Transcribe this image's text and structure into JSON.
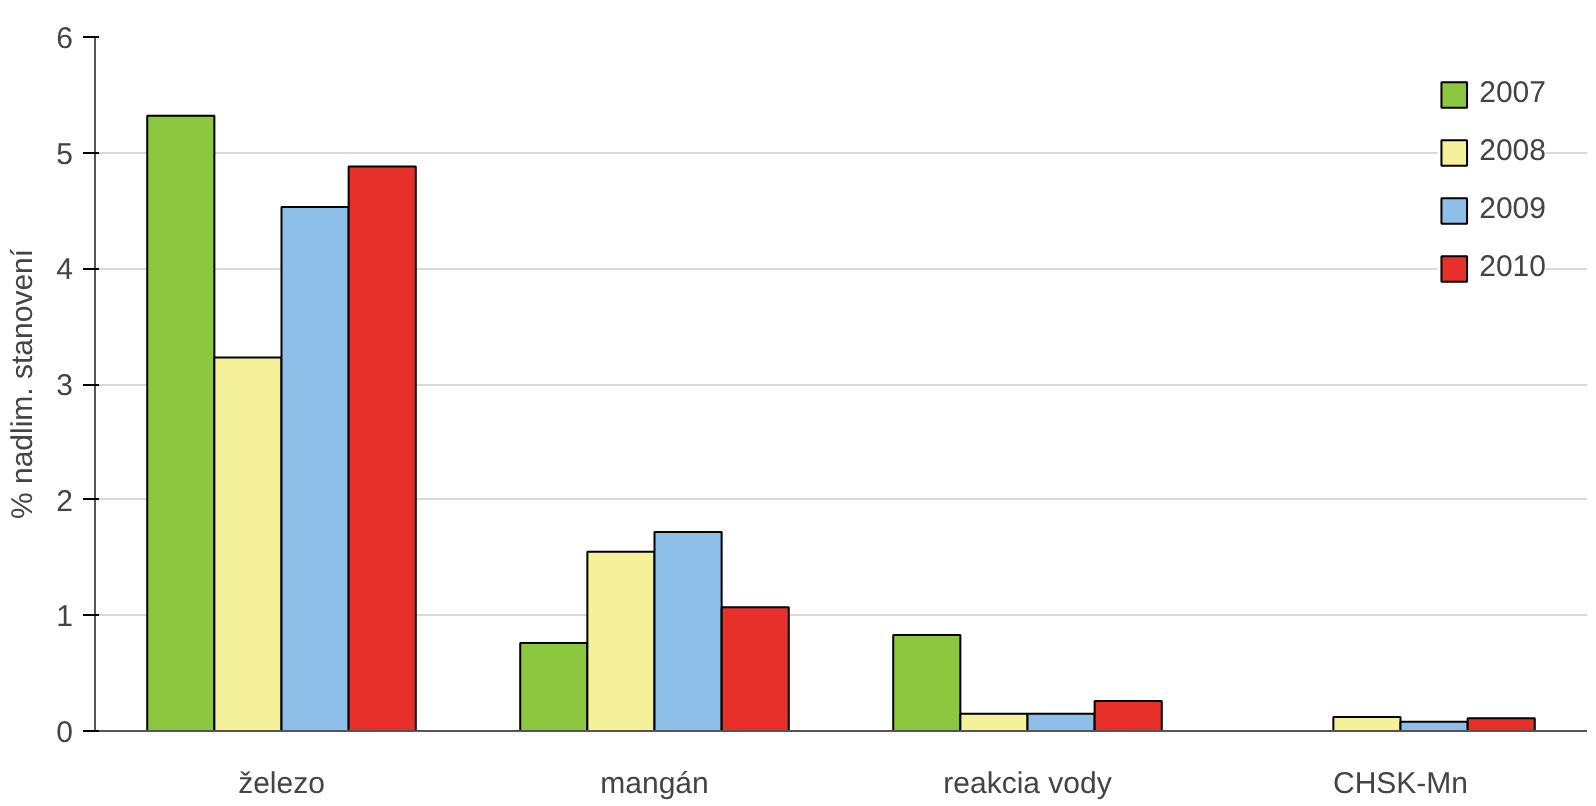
{
  "chart_data": {
    "type": "bar",
    "ylabel": "% nadlim. stanovení",
    "categories": [
      "železo",
      "mangán",
      "reakcia vody",
      "CHSK-Mn"
    ],
    "series": [
      {
        "name": "2007",
        "color": "#8dc63f",
        "values": [
          5.32,
          0.76,
          0.83,
          null
        ]
      },
      {
        "name": "2008",
        "color": "#f5f09a",
        "values": [
          3.23,
          1.55,
          0.15,
          0.12
        ]
      },
      {
        "name": "2009",
        "color": "#8dbfe8",
        "values": [
          4.53,
          1.72,
          0.15,
          0.08
        ]
      },
      {
        "name": "2010",
        "color": "#e8302a",
        "values": [
          4.88,
          1.07,
          0.26,
          0.11
        ]
      }
    ],
    "ylim": [
      0,
      6
    ],
    "yticks": [
      0,
      1,
      2,
      3,
      4,
      5,
      6
    ],
    "grid": "y",
    "legend": "top right"
  }
}
